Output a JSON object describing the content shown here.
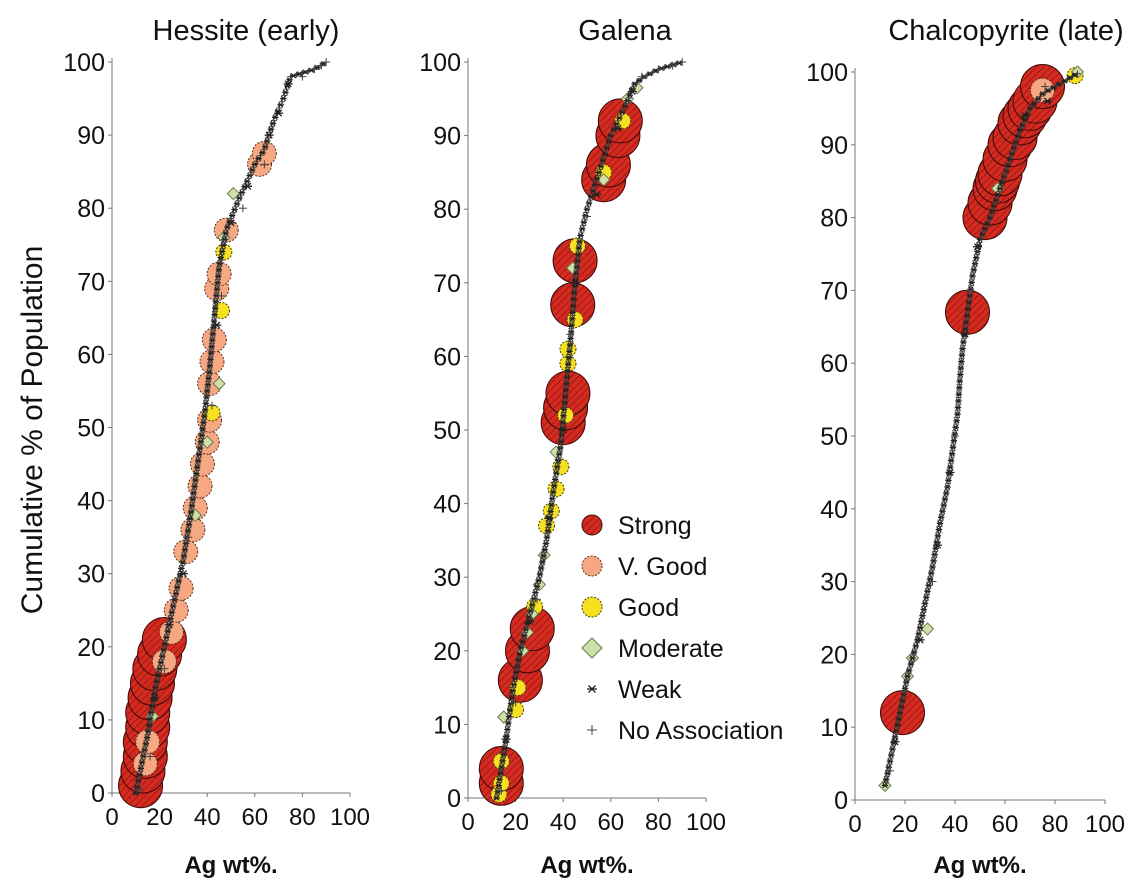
{
  "figure": {
    "ylabel": "Cumulative % of Population",
    "legend": {
      "placement": "center, inside Galena panel",
      "items": [
        {
          "label": "Strong",
          "marker": "circle",
          "color": "#d42a20"
        },
        {
          "label": "V. Good",
          "marker": "circle",
          "color": "#f5a882"
        },
        {
          "label": "Good",
          "marker": "circle",
          "color": "#f5e021"
        },
        {
          "label": "Moderate",
          "marker": "diamond",
          "color": "#cfe0a8"
        },
        {
          "label": "Weak",
          "marker": "asterisk",
          "color": "#222222"
        },
        {
          "label": "No Association",
          "marker": "plus",
          "color": "#555555"
        }
      ]
    }
  },
  "chart_data": [
    {
      "type": "scatter",
      "title": "Hessite (early)",
      "xlabel": "Ag wt%.",
      "ylabel": "Cumulative % of Population",
      "xlim": [
        0,
        100
      ],
      "ylim": [
        0,
        100
      ],
      "xticks": [
        0,
        20,
        40,
        60,
        80,
        100
      ],
      "yticks": [
        0,
        10,
        20,
        30,
        40,
        50,
        60,
        70,
        80,
        90,
        100
      ],
      "curve": [
        [
          10,
          0
        ],
        [
          15,
          8
        ],
        [
          18,
          14
        ],
        [
          22,
          20
        ],
        [
          26,
          26
        ],
        [
          30,
          32
        ],
        [
          33,
          38
        ],
        [
          36,
          45
        ],
        [
          39,
          52
        ],
        [
          41,
          58
        ],
        [
          43,
          65
        ],
        [
          45,
          72
        ],
        [
          48,
          77
        ],
        [
          53,
          81
        ],
        [
          60,
          86
        ],
        [
          64,
          88
        ],
        [
          68,
          92
        ],
        [
          72,
          95
        ],
        [
          75,
          98
        ],
        [
          80,
          98.5
        ],
        [
          85,
          99
        ],
        [
          90,
          100
        ]
      ],
      "series": [
        {
          "name": "Strong",
          "points": [
            [
              12,
              1
            ],
            [
              13,
              3
            ],
            [
              14,
              5
            ],
            [
              14,
              7
            ],
            [
              15,
              9
            ],
            [
              15,
              11
            ],
            [
              16,
              13
            ],
            [
              17,
              15
            ],
            [
              18,
              17
            ],
            [
              20,
              19
            ],
            [
              22,
              21
            ]
          ]
        },
        {
          "name": "V. Good",
          "points": [
            [
              14,
              4
            ],
            [
              15,
              7
            ],
            [
              22,
              18
            ],
            [
              25,
              22
            ],
            [
              27,
              25
            ],
            [
              29,
              28
            ],
            [
              31,
              33
            ],
            [
              34,
              36
            ],
            [
              35,
              39
            ],
            [
              37,
              42
            ],
            [
              38,
              45
            ],
            [
              40,
              48
            ],
            [
              41,
              51
            ],
            [
              41,
              56
            ],
            [
              42,
              59
            ],
            [
              43,
              62
            ],
            [
              44,
              69
            ],
            [
              45,
              71
            ],
            [
              48,
              77
            ],
            [
              62,
              86
            ],
            [
              64,
              87.5
            ]
          ]
        },
        {
          "name": "Good",
          "points": [
            [
              42,
              52
            ],
            [
              46,
              66
            ],
            [
              47,
              74
            ]
          ]
        },
        {
          "name": "Moderate",
          "points": [
            [
              17,
              10.5
            ],
            [
              35,
              38
            ],
            [
              40,
              48
            ],
            [
              45,
              56
            ],
            [
              47,
              76
            ],
            [
              51,
              82
            ]
          ]
        },
        {
          "name": "Weak",
          "points": [
            [
              18,
              13
            ],
            [
              24,
              23
            ],
            [
              30,
              30
            ],
            [
              44,
              64
            ],
            [
              50,
              78
            ],
            [
              57,
              83
            ],
            [
              66,
              90
            ],
            [
              70,
              93
            ],
            [
              74,
              97
            ]
          ]
        },
        {
          "name": "No Association",
          "points": [
            [
              12,
              0.5
            ],
            [
              16,
              5
            ],
            [
              22,
              17
            ],
            [
              32,
              35
            ],
            [
              42,
              53
            ],
            [
              46,
              68
            ],
            [
              55,
              80
            ],
            [
              64,
              86
            ],
            [
              80,
              98
            ],
            [
              85,
              99
            ],
            [
              88,
              99.5
            ],
            [
              90,
              100
            ]
          ]
        }
      ]
    },
    {
      "type": "scatter",
      "title": "Galena",
      "xlabel": "Ag wt%.",
      "ylabel": "",
      "xlim": [
        0,
        100
      ],
      "ylim": [
        0,
        100
      ],
      "xticks": [
        0,
        20,
        40,
        60,
        80,
        100
      ],
      "yticks": [
        0,
        10,
        20,
        30,
        40,
        50,
        60,
        70,
        80,
        90,
        100
      ],
      "curve": [
        [
          12,
          0
        ],
        [
          16,
          8
        ],
        [
          19,
          15
        ],
        [
          22,
          20
        ],
        [
          26,
          25
        ],
        [
          30,
          30
        ],
        [
          33,
          35
        ],
        [
          36,
          42
        ],
        [
          39,
          48
        ],
        [
          41,
          55
        ],
        [
          43,
          62
        ],
        [
          45,
          70
        ],
        [
          47,
          76
        ],
        [
          50,
          80
        ],
        [
          55,
          85
        ],
        [
          60,
          90
        ],
        [
          66,
          94
        ],
        [
          70,
          97
        ],
        [
          74,
          98
        ],
        [
          80,
          99
        ],
        [
          90,
          100
        ]
      ],
      "series": [
        {
          "name": "Strong",
          "points": [
            [
              14,
              2
            ],
            [
              14,
              4
            ],
            [
              22,
              16
            ],
            [
              25,
              20
            ],
            [
              27,
              23
            ],
            [
              40,
              51
            ],
            [
              41,
              53
            ],
            [
              42,
              55
            ],
            [
              44,
              67
            ],
            [
              45,
              73
            ],
            [
              57,
              84
            ],
            [
              59,
              86
            ],
            [
              63,
              90
            ],
            [
              64,
              92
            ]
          ]
        },
        {
          "name": "V. Good",
          "points": []
        },
        {
          "name": "Good",
          "points": [
            [
              13,
              0.5
            ],
            [
              14,
              2
            ],
            [
              14,
              5
            ],
            [
              20,
              12
            ],
            [
              21,
              15
            ],
            [
              28,
              26
            ],
            [
              33,
              37
            ],
            [
              35,
              39
            ],
            [
              37,
              42
            ],
            [
              39,
              45
            ],
            [
              41,
              52
            ],
            [
              42,
              59
            ],
            [
              42,
              61
            ],
            [
              45,
              65
            ],
            [
              46,
              75
            ],
            [
              57,
              85
            ],
            [
              65,
              92
            ]
          ]
        },
        {
          "name": "Moderate",
          "points": [
            [
              15,
              11
            ],
            [
              23,
              20
            ],
            [
              25,
              22.5
            ],
            [
              27,
              25
            ],
            [
              30,
              29
            ],
            [
              32,
              33
            ],
            [
              37,
              47
            ],
            [
              44,
              72
            ],
            [
              57,
              84
            ],
            [
              67,
              95
            ],
            [
              71,
              96.5
            ]
          ]
        },
        {
          "name": "Weak",
          "points": [
            [
              16,
              8
            ],
            [
              26,
              24
            ],
            [
              34,
              38
            ],
            [
              40,
              50
            ],
            [
              45,
              70
            ],
            [
              54,
              82
            ],
            [
              63,
              91
            ],
            [
              69,
              96
            ]
          ]
        },
        {
          "name": "No Association",
          "points": [
            [
              14,
              1
            ],
            [
              20,
              13
            ],
            [
              29,
              27
            ],
            [
              38,
              46
            ],
            [
              43,
              63
            ],
            [
              50,
              79
            ],
            [
              73,
              98
            ],
            [
              80,
              99
            ],
            [
              86,
              99.5
            ],
            [
              90,
              100
            ]
          ]
        }
      ]
    },
    {
      "type": "scatter",
      "title": "Chalcopyrite (late)",
      "xlabel": "Ag wt%.",
      "ylabel": "",
      "xlim": [
        0,
        100
      ],
      "ylim": [
        0,
        100
      ],
      "xticks": [
        0,
        20,
        40,
        60,
        80,
        100
      ],
      "yticks": [
        0,
        10,
        20,
        30,
        40,
        50,
        60,
        70,
        80,
        90,
        100
      ],
      "curve": [
        [
          12,
          2
        ],
        [
          15,
          7
        ],
        [
          18,
          12
        ],
        [
          21,
          17
        ],
        [
          25,
          22
        ],
        [
          28,
          27
        ],
        [
          31,
          32
        ],
        [
          34,
          38
        ],
        [
          37,
          43
        ],
        [
          39,
          48
        ],
        [
          41,
          53
        ],
        [
          42,
          58
        ],
        [
          43,
          62
        ],
        [
          45,
          67
        ],
        [
          47,
          72
        ],
        [
          50,
          77
        ],
        [
          54,
          80
        ],
        [
          58,
          84
        ],
        [
          62,
          88
        ],
        [
          66,
          92
        ],
        [
          70,
          95
        ],
        [
          75,
          97
        ],
        [
          85,
          99
        ],
        [
          90,
          100
        ]
      ],
      "series": [
        {
          "name": "Strong",
          "points": [
            [
              19,
              12
            ],
            [
              45,
              67
            ],
            [
              52,
              80
            ],
            [
              54,
              82
            ],
            [
              56,
              84
            ],
            [
              57,
              85
            ],
            [
              58,
              86
            ],
            [
              60,
              88
            ],
            [
              62,
              90
            ],
            [
              64,
              91
            ],
            [
              66,
              93
            ],
            [
              68,
              94
            ],
            [
              70,
              95
            ],
            [
              72,
              96
            ],
            [
              75,
              98
            ]
          ]
        },
        {
          "name": "V. Good",
          "points": [
            [
              75,
              97.5
            ]
          ]
        },
        {
          "name": "Good",
          "points": [
            [
              88,
              99.5
            ]
          ]
        },
        {
          "name": "Moderate",
          "points": [
            [
              12,
              2
            ],
            [
              21,
              17
            ],
            [
              23,
              19.5
            ],
            [
              29,
              23.5
            ],
            [
              57,
              84
            ],
            [
              89,
              100
            ]
          ]
        },
        {
          "name": "Weak",
          "points": [
            [
              16,
              8
            ],
            [
              26,
              22
            ],
            [
              33,
              35
            ],
            [
              38,
              45
            ],
            [
              44,
              64
            ],
            [
              49,
              76
            ],
            [
              68,
              94
            ],
            [
              77,
              96
            ]
          ]
        },
        {
          "name": "No Association",
          "points": [
            [
              14,
              4
            ],
            [
              20,
              15
            ],
            [
              31,
              30
            ],
            [
              40,
              50
            ],
            [
              46,
              70
            ],
            [
              60,
              86
            ],
            [
              76,
              98
            ]
          ]
        }
      ]
    }
  ]
}
